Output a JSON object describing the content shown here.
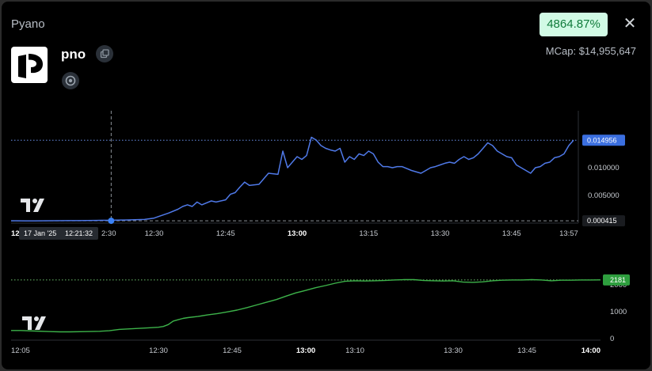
{
  "header": {
    "app_title": "Pyano",
    "symbol": "pno",
    "percent_change": "4864.87%",
    "mcap_label": "MCap: $14,955,647",
    "close_glyph": "✕"
  },
  "colors": {
    "price_line": "#4f79e8",
    "holders_line": "#3db34a",
    "badge_bg": "#d1fae5",
    "badge_text": "#0f7a3a"
  },
  "icons": {
    "logo": "pyano-logo-icon",
    "copy": "copy-icon",
    "website": "website-icon",
    "watermark": "tradingview-logo-icon"
  },
  "chart_data": [
    {
      "type": "line",
      "name": "price",
      "x": [
        "12:00",
        "12:01",
        "12:03",
        "12:05",
        "12:07",
        "12:10",
        "12:12",
        "12:14",
        "12:16",
        "12:18",
        "12:20",
        "12:21",
        "12:22",
        "12:24",
        "12:26",
        "12:28",
        "12:30",
        "12:31",
        "12:33",
        "12:35",
        "12:36",
        "12:37",
        "12:38",
        "12:39",
        "12:40",
        "12:42",
        "12:43",
        "12:45",
        "12:46",
        "12:47",
        "12:48",
        "12:49",
        "12:50",
        "12:52",
        "12:53",
        "12:54",
        "12:56",
        "12:57",
        "12:58",
        "12:59",
        "13:00",
        "13:01",
        "13:02",
        "13:03",
        "13:04",
        "13:05",
        "13:06",
        "13:07",
        "13:08",
        "13:09",
        "13:10",
        "13:11",
        "13:12",
        "13:13",
        "13:14",
        "13:15",
        "13:16",
        "13:17",
        "13:18",
        "13:19",
        "13:20",
        "13:21",
        "13:22",
        "13:24",
        "13:26",
        "13:27",
        "13:28",
        "13:29",
        "13:30",
        "13:31",
        "13:32",
        "13:33",
        "13:34",
        "13:35",
        "13:36",
        "13:37",
        "13:38",
        "13:39",
        "13:40",
        "13:41",
        "13:42",
        "13:43",
        "13:44",
        "13:45",
        "13:46",
        "13:47",
        "13:48",
        "13:49",
        "13:50",
        "13:51",
        "13:52",
        "13:53",
        "13:54",
        "13:55",
        "13:56",
        "13:57",
        "13:58"
      ],
      "y": [
        0.00042,
        0.00041,
        0.0004,
        0.0004,
        0.00041,
        0.00043,
        0.00044,
        0.00045,
        0.00046,
        0.00048,
        0.0005,
        0.00052,
        0.00053,
        0.00056,
        0.0006,
        0.00066,
        0.0009,
        0.0012,
        0.0018,
        0.0025,
        0.003,
        0.0033,
        0.003,
        0.0038,
        0.0033,
        0.004,
        0.0038,
        0.0042,
        0.0052,
        0.0055,
        0.0065,
        0.0074,
        0.0068,
        0.007,
        0.008,
        0.009,
        0.0088,
        0.013,
        0.01,
        0.011,
        0.012,
        0.0115,
        0.0122,
        0.0155,
        0.015,
        0.014,
        0.0135,
        0.0132,
        0.013,
        0.0135,
        0.011,
        0.012,
        0.0115,
        0.0125,
        0.0122,
        0.013,
        0.0125,
        0.011,
        0.0102,
        0.0102,
        0.01,
        0.0102,
        0.0102,
        0.0095,
        0.009,
        0.0095,
        0.01,
        0.0102,
        0.0105,
        0.0108,
        0.011,
        0.0108,
        0.0115,
        0.012,
        0.0115,
        0.0118,
        0.0125,
        0.0135,
        0.0145,
        0.014,
        0.013,
        0.0125,
        0.012,
        0.0118,
        0.0105,
        0.01,
        0.0095,
        0.009,
        0.01,
        0.0102,
        0.0108,
        0.011,
        0.0118,
        0.012,
        0.0125,
        0.014,
        0.01496
      ],
      "y_ticks": [
        "0.005000",
        "0.010000"
      ],
      "x_ticks": [
        "12:30",
        "12:45",
        "13:00",
        "13:15",
        "13:30",
        "13:45",
        "13:57"
      ],
      "x_tick_cut": "12",
      "ylim": [
        0,
        0.02
      ],
      "last_value_label": "0.014956",
      "last_value": 0.014956,
      "first_value_label": "0.000415",
      "first_value": 0.000415,
      "crosshair": {
        "date_label": "17 Jan '25",
        "time_label": "12:21:32",
        "time_suffix": "2:30",
        "time": "12:21",
        "value": 0.000415
      }
    },
    {
      "type": "line",
      "name": "holders",
      "x": [
        "12:00",
        "12:02",
        "12:05",
        "12:08",
        "12:10",
        "12:12",
        "12:15",
        "12:18",
        "12:20",
        "12:22",
        "12:25",
        "12:28",
        "12:30",
        "12:31",
        "12:32",
        "12:33",
        "12:34",
        "12:35",
        "12:36",
        "12:38",
        "12:40",
        "12:42",
        "12:44",
        "12:46",
        "12:48",
        "12:50",
        "12:52",
        "12:54",
        "12:56",
        "12:58",
        "13:00",
        "13:02",
        "13:04",
        "13:06",
        "13:08",
        "13:10",
        "13:12",
        "13:14",
        "13:16",
        "13:18",
        "13:20",
        "13:22",
        "13:24",
        "13:26",
        "13:28",
        "13:30",
        "13:32",
        "13:34",
        "13:36",
        "13:38",
        "13:40",
        "13:42",
        "13:44",
        "13:46",
        "13:48",
        "13:50",
        "13:52",
        "13:54",
        "13:56",
        "13:58",
        "14:00"
      ],
      "y": [
        300,
        300,
        280,
        260,
        250,
        250,
        260,
        270,
        290,
        340,
        370,
        400,
        420,
        450,
        520,
        650,
        700,
        750,
        780,
        820,
        880,
        930,
        990,
        1060,
        1150,
        1250,
        1350,
        1450,
        1580,
        1700,
        1790,
        1890,
        1970,
        2060,
        2130,
        2150,
        2140,
        2150,
        2160,
        2180,
        2190,
        2190,
        2160,
        2150,
        2140,
        2150,
        2100,
        2090,
        2110,
        2150,
        2170,
        2180,
        2180,
        2190,
        2180,
        2150,
        2170,
        2170,
        2180,
        2180,
        2181
      ],
      "y_ticks": [
        "0",
        "1000",
        "2000"
      ],
      "y_tick_values": [
        0,
        1000,
        2000
      ],
      "x_ticks": [
        "12:05",
        "12:30",
        "12:45",
        "13:00",
        "13:10",
        "13:30",
        "13:45",
        "14:00"
      ],
      "ylim": [
        0,
        2500
      ],
      "last_value_label": "2181",
      "last_value": 2181
    }
  ]
}
